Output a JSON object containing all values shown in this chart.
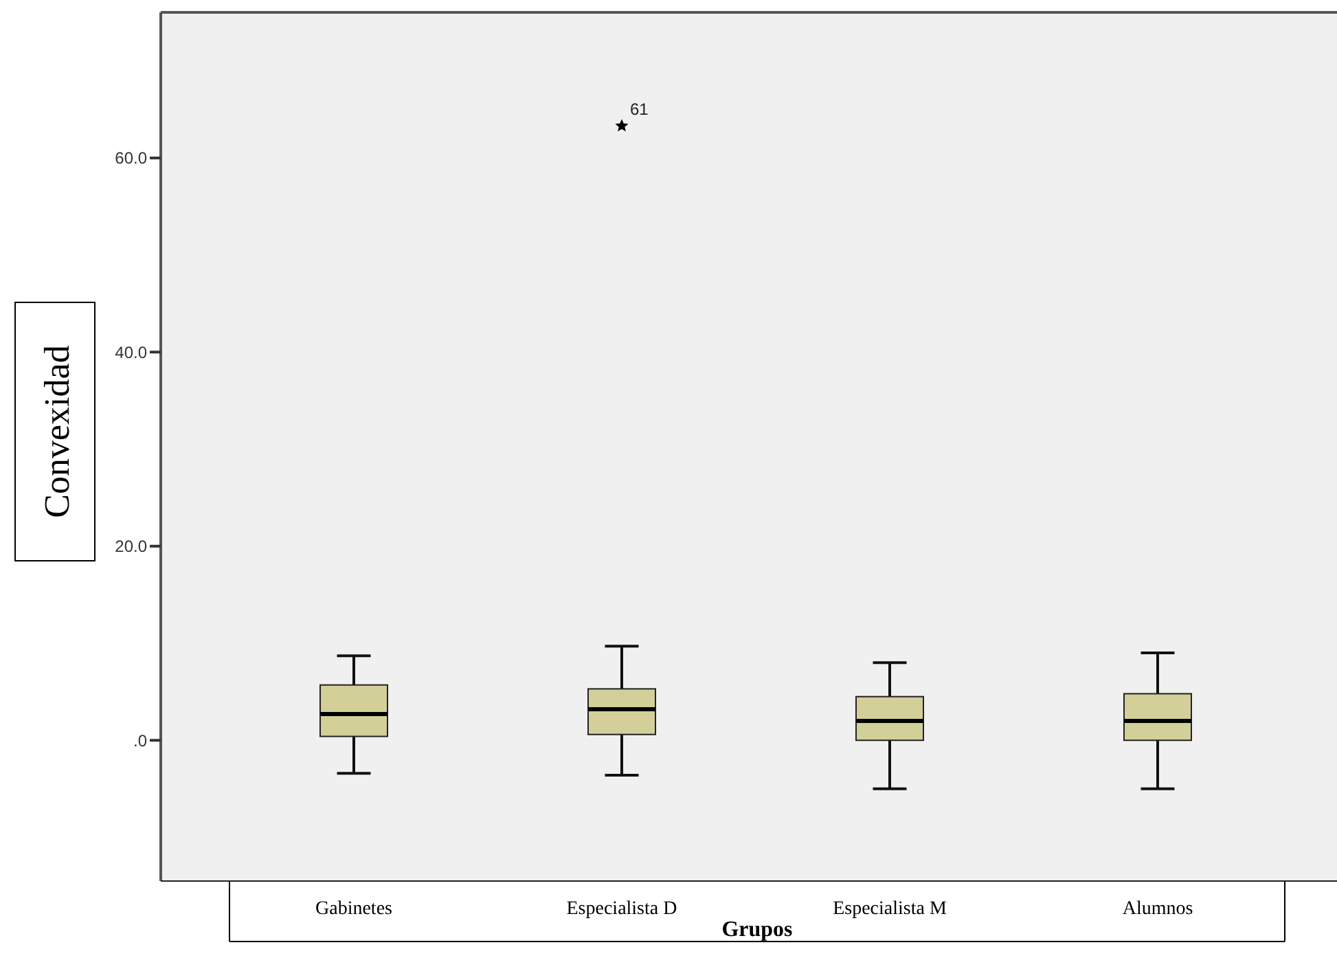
{
  "chart_data": {
    "type": "box",
    "xlabel": "Grupos",
    "ylabel": "Convexidad",
    "categories": [
      "Gabinetes",
      "Especialista D",
      "Especialista M",
      "Alumnos"
    ],
    "boxes": [
      {
        "low": -3.4,
        "q1": 0.4,
        "median": 2.7,
        "q3": 5.7,
        "high": 8.7
      },
      {
        "low": -3.6,
        "q1": 0.6,
        "median": 3.2,
        "q3": 5.3,
        "high": 9.7,
        "outliers": [
          63.3
        ]
      },
      {
        "low": -5,
        "q1": 0,
        "median": 2,
        "q3": 4.5,
        "high": 8
      },
      {
        "low": -5,
        "q1": 0,
        "median": 2,
        "q3": 4.8,
        "high": 9
      }
    ],
    "color": "#d3cf99",
    "marker": "star",
    "annotations": [
      "61"
    ],
    "ylim": [
      -14.5,
      75
    ],
    "yticks": [
      {
        "value": 0,
        "label": ".0"
      },
      {
        "value": 20,
        "label": "20.0"
      },
      {
        "value": 40,
        "label": "40.0"
      },
      {
        "value": 60,
        "label": "60.0"
      }
    ],
    "grid": false
  }
}
